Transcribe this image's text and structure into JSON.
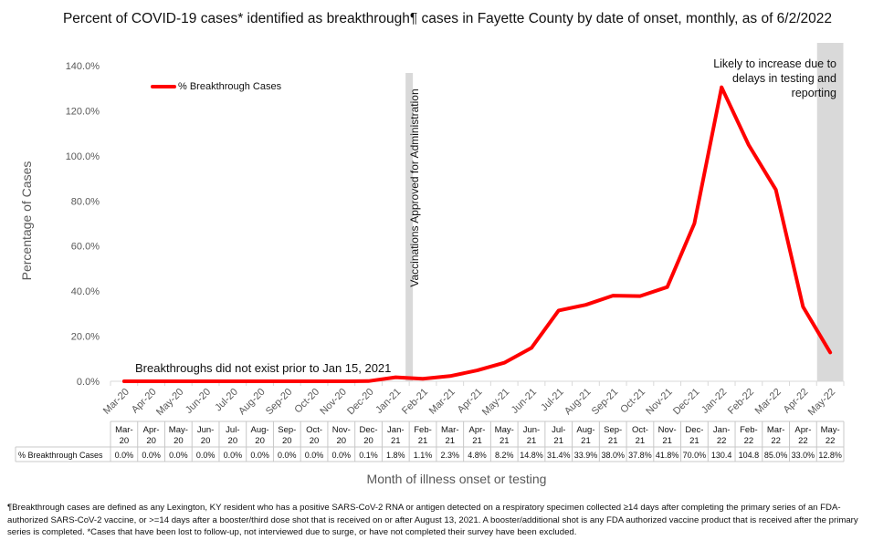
{
  "page": {
    "title": "Percent of COVID-19 cases* identified as breakthrough¶ cases in Fayette County by date of onset, monthly, as of 6/2/2022",
    "footnote": "¶Breakthrough cases are defined as any Lexington, KY resident who has a positive SARS-CoV-2 RNA or antigen detected on a respiratory specimen collected ≥14 days after completing the primary series of an FDA-authorized SARS-CoV-2 vaccine, or >=14 days after a booster/third dose shot that is received on or after August 13, 2021.  A booster/additional shot is any FDA authorized vaccine product that is received after the primary series is completed. *Cases that have been lost to follow-up, not interviewed due to surge, or have not completed their survey have been excluded."
  },
  "chart_data": {
    "type": "line",
    "title": "Percent of COVID-19 cases* identified as breakthrough¶ cases in Fayette County by date of onset, monthly, as of 6/2/2022",
    "xlabel": "Month of illness onset or testing",
    "ylabel": "Percentage of Cases",
    "ylim": [
      0,
      140
    ],
    "yticks": [
      "0.0%",
      "20.0%",
      "40.0%",
      "60.0%",
      "80.0%",
      "100.0%",
      "120.0%",
      "140.0%"
    ],
    "ytick_values": [
      0,
      20,
      40,
      60,
      80,
      100,
      120,
      140
    ],
    "categories": [
      "Mar-20",
      "Apr-20",
      "May-20",
      "Jun-20",
      "Jul-20",
      "Aug-20",
      "Sep-20",
      "Oct-20",
      "Nov-20",
      "Dec-20",
      "Jan-21",
      "Feb-21",
      "Mar-21",
      "Apr-21",
      "May-21",
      "Jun-21",
      "Jul-21",
      "Aug-21",
      "Sep-21",
      "Oct-21",
      "Nov-21",
      "Dec-21",
      "Jan-22",
      "Feb-22",
      "Mar-22",
      "Apr-22",
      "May-22"
    ],
    "series": [
      {
        "name": "% Breakthrough Cases",
        "color": "#ff0000",
        "values": [
          0.0,
          0.0,
          0.0,
          0.0,
          0.0,
          0.0,
          0.0,
          0.0,
          0.0,
          0.1,
          1.8,
          1.1,
          2.3,
          4.8,
          8.2,
          14.8,
          31.4,
          33.9,
          38.0,
          37.8,
          41.8,
          70.0,
          130.4,
          104.8,
          85.0,
          33.0,
          12.8
        ],
        "table_values": [
          "0.0%",
          "0.0%",
          "0.0%",
          "0.0%",
          "0.0%",
          "0.0%",
          "0.0%",
          "0.0%",
          "0.0%",
          "0.1%",
          "1.8%",
          "1.1%",
          "2.3%",
          "4.8%",
          "8.2%",
          "14.8%",
          "31.4%",
          "33.9%",
          "38.0%",
          "37.8%",
          "41.8%",
          "70.0%",
          "130.4",
          "104.8",
          "85.0%",
          "33.0%",
          "12.8%"
        ]
      }
    ],
    "table_row_label": "% Breakthrough Cases",
    "legend": {
      "label": "% Breakthrough Cases",
      "position": "top-left"
    },
    "annotations": {
      "vaccine_line_label": "Vaccinations Approved for Administration",
      "vaccine_line_at": "Feb-21",
      "pre_vaccine_note": "Breakthroughs did not exist prior to Jan 15, 2021",
      "recent_note": "Likely to increase due to delays in testing and reporting",
      "shaded_category": "May-22"
    },
    "colors": {
      "line": "#ff0000",
      "shade": "#d9d9d9",
      "axis_text": "#595959"
    },
    "grid": false
  }
}
